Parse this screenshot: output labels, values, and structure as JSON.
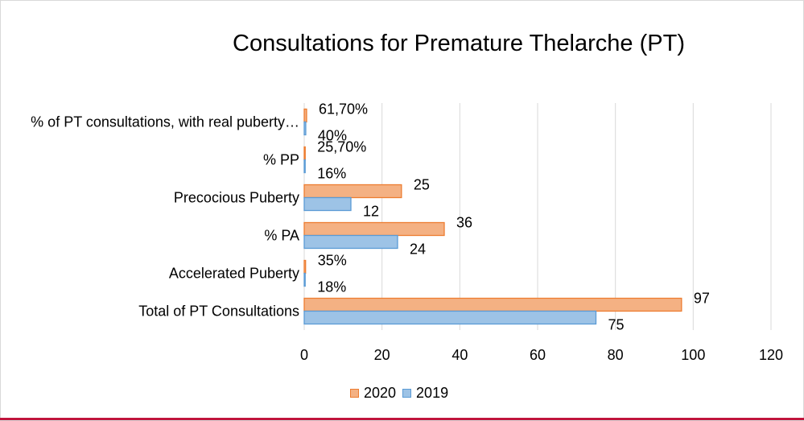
{
  "chart_data": {
    "type": "bar",
    "orientation": "horizontal",
    "title": "Consultations for Premature Thelarche (PT)",
    "categories": [
      "% of PT consultations, with real puberty…",
      "% PP",
      "Precocious Puberty",
      "% PA",
      "Accelerated Puberty",
      "Total of PT Consultations"
    ],
    "series": [
      {
        "name": "2020",
        "color": "#f4b183",
        "stroke": "#ed7d31",
        "values": [
          0.617,
          0.257,
          25,
          36,
          0.35,
          97
        ],
        "labels": [
          "61,70%",
          "25,70%",
          "25",
          "36",
          "35%",
          "97"
        ]
      },
      {
        "name": "2019",
        "color": "#9dc3e6",
        "stroke": "#5b9bd5",
        "values": [
          0.4,
          0.16,
          12,
          24,
          0.18,
          75
        ],
        "labels": [
          "40%",
          "16%",
          "12",
          "24",
          "18%",
          "75"
        ]
      }
    ],
    "xlim": [
      0,
      120
    ],
    "xticks": [
      0,
      20,
      40,
      60,
      80,
      100,
      120
    ],
    "grid": true,
    "legend_position": "bottom"
  }
}
